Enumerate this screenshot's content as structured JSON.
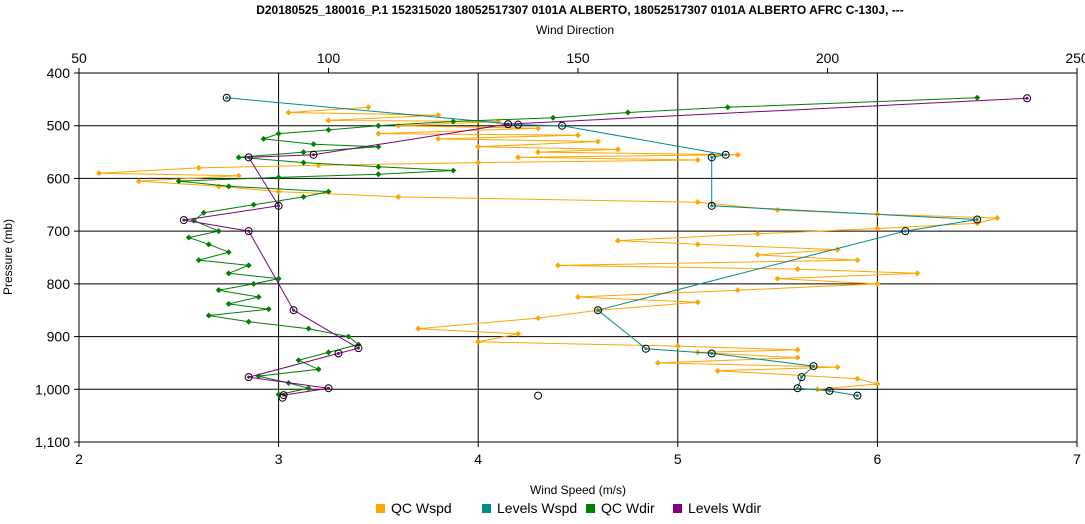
{
  "chart_data": {
    "type": "scatter",
    "title": "D20180525_180016_P.1 152315020 18052517307 0101A ALBERTO, 18052517307 0101A ALBERTO AFRC C-130J, ---",
    "xlabel_bottom": "Wind Speed (m/s)",
    "xlabel_top": "Wind Direction",
    "ylabel": "Pressure (mb)",
    "xlim_bottom": [
      2,
      7
    ],
    "xlim_top": [
      50,
      250
    ],
    "ylim": [
      400,
      1100
    ],
    "y_inverted": true,
    "grid": true,
    "legend_position": "bottom",
    "x_ticks_bottom": [
      "2",
      "3",
      "4",
      "5",
      "6",
      "7"
    ],
    "x_ticks_top": [
      "50",
      "100",
      "150",
      "200",
      "250"
    ],
    "y_ticks": [
      "400",
      "500",
      "600",
      "700",
      "800",
      "900",
      "1,000",
      "1,100"
    ],
    "series": [
      {
        "name": "QC Wspd",
        "axis": "bottom",
        "color": "#ffa500",
        "marker": "diamond",
        "connected": true,
        "points": [
          [
            3.45,
            465
          ],
          [
            3.05,
            475
          ],
          [
            3.8,
            480
          ],
          [
            3.25,
            490
          ],
          [
            4.1,
            492
          ],
          [
            3.6,
            500
          ],
          [
            4.3,
            505
          ],
          [
            3.5,
            515
          ],
          [
            4.5,
            518
          ],
          [
            3.8,
            525
          ],
          [
            4.6,
            530
          ],
          [
            4.0,
            540
          ],
          [
            4.7,
            545
          ],
          [
            4.3,
            550
          ],
          [
            5.3,
            555
          ],
          [
            4.2,
            560
          ],
          [
            5.1,
            565
          ],
          [
            4.0,
            570
          ],
          [
            3.2,
            575
          ],
          [
            2.6,
            580
          ],
          [
            2.1,
            590
          ],
          [
            2.8,
            595
          ],
          [
            2.3,
            605
          ],
          [
            2.7,
            615
          ],
          [
            3.0,
            625
          ],
          [
            3.6,
            635
          ],
          [
            5.1,
            645
          ],
          [
            5.5,
            660
          ],
          [
            6.0,
            668
          ],
          [
            6.6,
            675
          ],
          [
            6.5,
            685
          ],
          [
            6.0,
            695
          ],
          [
            5.4,
            705
          ],
          [
            4.7,
            718
          ],
          [
            5.1,
            725
          ],
          [
            5.8,
            735
          ],
          [
            5.4,
            745
          ],
          [
            5.9,
            755
          ],
          [
            4.4,
            765
          ],
          [
            5.6,
            772
          ],
          [
            6.2,
            780
          ],
          [
            5.5,
            790
          ],
          [
            6.0,
            800
          ],
          [
            5.3,
            812
          ],
          [
            4.5,
            825
          ],
          [
            5.1,
            835
          ],
          [
            4.6,
            850
          ],
          [
            4.3,
            865
          ],
          [
            3.7,
            885
          ],
          [
            4.2,
            895
          ],
          [
            4.0,
            910
          ],
          [
            5.0,
            918
          ],
          [
            5.6,
            925
          ],
          [
            5.1,
            930
          ],
          [
            5.6,
            940
          ],
          [
            4.9,
            950
          ],
          [
            5.8,
            958
          ],
          [
            5.2,
            965
          ],
          [
            5.9,
            980
          ],
          [
            6.0,
            990
          ],
          [
            5.7,
            1000
          ]
        ]
      },
      {
        "name": "Levels Wspd",
        "axis": "bottom",
        "color": "#008b8b",
        "marker": "circle",
        "connected": true,
        "points": [
          [
            2.74,
            447
          ],
          [
            4.2,
            498
          ],
          [
            4.42,
            500
          ],
          [
            5.24,
            555
          ],
          [
            5.17,
            560
          ],
          [
            5.17,
            652
          ],
          [
            6.5,
            678
          ],
          [
            6.14,
            700
          ],
          [
            4.6,
            850
          ],
          [
            4.84,
            923
          ],
          [
            5.17,
            932
          ],
          [
            5.68,
            956
          ],
          [
            5.62,
            977
          ],
          [
            5.6,
            998
          ],
          [
            5.76,
            1003
          ],
          [
            5.9,
            1012
          ]
        ]
      },
      {
        "name": "QC Wdir",
        "axis": "top",
        "color": "#008000",
        "marker": "diamond",
        "connected": true,
        "points": [
          [
            230,
            447
          ],
          [
            180,
            465
          ],
          [
            160,
            475
          ],
          [
            145,
            485
          ],
          [
            125,
            492
          ],
          [
            110,
            500
          ],
          [
            100,
            508
          ],
          [
            90,
            515
          ],
          [
            87,
            525
          ],
          [
            97,
            535
          ],
          [
            110,
            540
          ],
          [
            95,
            550
          ],
          [
            82,
            560
          ],
          [
            95,
            570
          ],
          [
            110,
            578
          ],
          [
            125,
            585
          ],
          [
            110,
            592
          ],
          [
            90,
            598
          ],
          [
            70,
            605
          ],
          [
            80,
            615
          ],
          [
            100,
            625
          ],
          [
            95,
            635
          ],
          [
            85,
            650
          ],
          [
            75,
            665
          ],
          [
            73,
            680
          ],
          [
            78,
            700
          ],
          [
            72,
            712
          ],
          [
            76,
            725
          ],
          [
            80,
            740
          ],
          [
            74,
            755
          ],
          [
            84,
            765
          ],
          [
            80,
            780
          ],
          [
            90,
            790
          ],
          [
            85,
            800
          ],
          [
            78,
            812
          ],
          [
            86,
            825
          ],
          [
            80,
            838
          ],
          [
            88,
            848
          ],
          [
            76,
            860
          ],
          [
            84,
            872
          ],
          [
            96,
            885
          ],
          [
            104,
            900
          ],
          [
            106,
            915
          ],
          [
            100,
            930
          ],
          [
            94,
            945
          ],
          [
            98,
            962
          ],
          [
            86,
            975
          ],
          [
            92,
            988
          ],
          [
            96,
            998
          ],
          [
            90,
            1010
          ]
        ]
      },
      {
        "name": "Levels Wdir",
        "axis": "top",
        "color": "#800080",
        "marker": "circle",
        "connected": true,
        "points": [
          [
            240,
            448
          ],
          [
            136,
            497
          ],
          [
            97,
            555
          ],
          [
            84,
            560
          ],
          [
            90,
            652
          ],
          [
            71,
            679
          ],
          [
            84,
            700
          ],
          [
            93,
            850
          ],
          [
            106,
            922
          ],
          [
            102,
            932
          ],
          [
            84,
            977
          ],
          [
            100,
            998
          ],
          [
            91,
            1011
          ]
        ]
      }
    ]
  },
  "extra_points": [
    {
      "axis": "bottom",
      "x": 4.3,
      "y": 1012
    },
    {
      "axis": "bottom",
      "x": 3.02,
      "y": 1016
    }
  ],
  "colors": {
    "grid": "#000000",
    "plot_border": "#000000",
    "background": "#ffffff"
  }
}
